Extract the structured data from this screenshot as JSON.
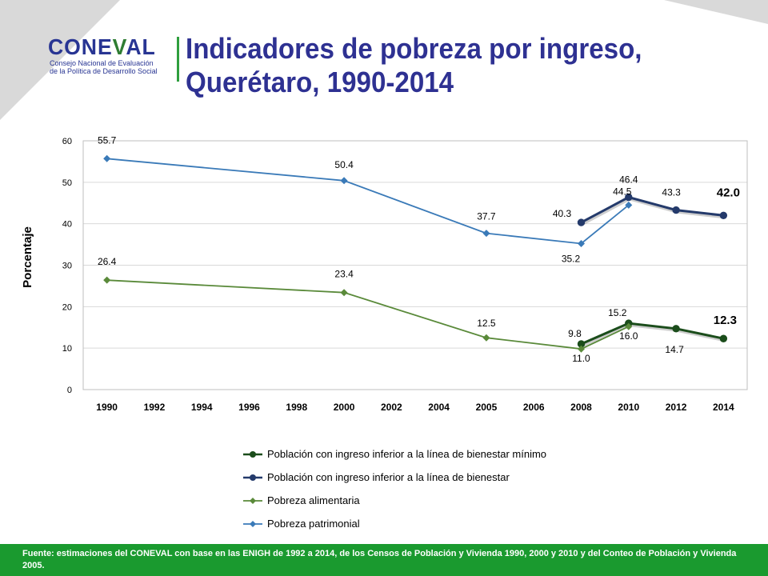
{
  "header": {
    "title_line1": "Indicadores de pobreza por ingreso,",
    "title_line2": "Querétaro, 1990-2014"
  },
  "logo": {
    "word_a": "CONE",
    "word_b": "V",
    "word_c": "AL",
    "sub1": "Consejo Nacional de Evaluación",
    "sub2": "de la Política de Desarrollo Social"
  },
  "colors": {
    "dark_green": "#1b4d1b",
    "navy": "#243a6b",
    "light_green": "#5a8a3a",
    "light_blue": "#3a7ab8",
    "brand_green": "#1a9a2f",
    "brand_blue": "#2e3192"
  },
  "chart_data": {
    "type": "line",
    "categories": [
      "1990",
      "1992",
      "1994",
      "1996",
      "1998",
      "2000",
      "2002",
      "2004",
      "2005",
      "2006",
      "2008",
      "2010",
      "2012",
      "2014"
    ],
    "ylabel": "Porcentaje",
    "ylim": [
      0,
      60
    ],
    "yticks": [
      0,
      10,
      20,
      30,
      40,
      50,
      60
    ],
    "grid": true,
    "legend_position": "bottom",
    "series": [
      {
        "name": "Población con ingreso inferior a la línea de bienestar mínimo",
        "points": [
          [
            "2008",
            11.0
          ],
          [
            "2010",
            16.0
          ],
          [
            "2012",
            14.7
          ],
          [
            "2014",
            12.3
          ]
        ],
        "labels": [
          "11.0",
          "16.0",
          "14.7",
          "12.3"
        ]
      },
      {
        "name": "Población con ingreso inferior a la línea de bienestar",
        "points": [
          [
            "2008",
            40.3
          ],
          [
            "2010",
            46.4
          ],
          [
            "2012",
            43.3
          ],
          [
            "2014",
            42.0
          ]
        ],
        "labels": [
          "40.3",
          "46.4",
          "43.3",
          "42.0"
        ]
      },
      {
        "name": "Pobreza alimentaria",
        "points": [
          [
            "1990",
            26.4
          ],
          [
            "2000",
            23.4
          ],
          [
            "2005",
            12.5
          ],
          [
            "2008",
            9.8
          ],
          [
            "2010",
            15.2
          ]
        ],
        "labels": [
          "26.4",
          "23.4",
          "12.5",
          "9.8",
          "15.2"
        ]
      },
      {
        "name": "Pobreza patrimonial",
        "points": [
          [
            "1990",
            55.7
          ],
          [
            "2000",
            50.4
          ],
          [
            "2005",
            37.7
          ],
          [
            "2008",
            35.2
          ],
          [
            "2010",
            44.5
          ]
        ],
        "labels": [
          "55.7",
          "50.4",
          "37.7",
          "35.2",
          "44.5"
        ]
      }
    ]
  },
  "footer": {
    "source": "Fuente: estimaciones del CONEVAL con base en las ENIGH de 1992 a 2014, de los Censos de Población y Vivienda 1990, 2000 y 2010 y del Conteo de Población y Vivienda 2005."
  }
}
